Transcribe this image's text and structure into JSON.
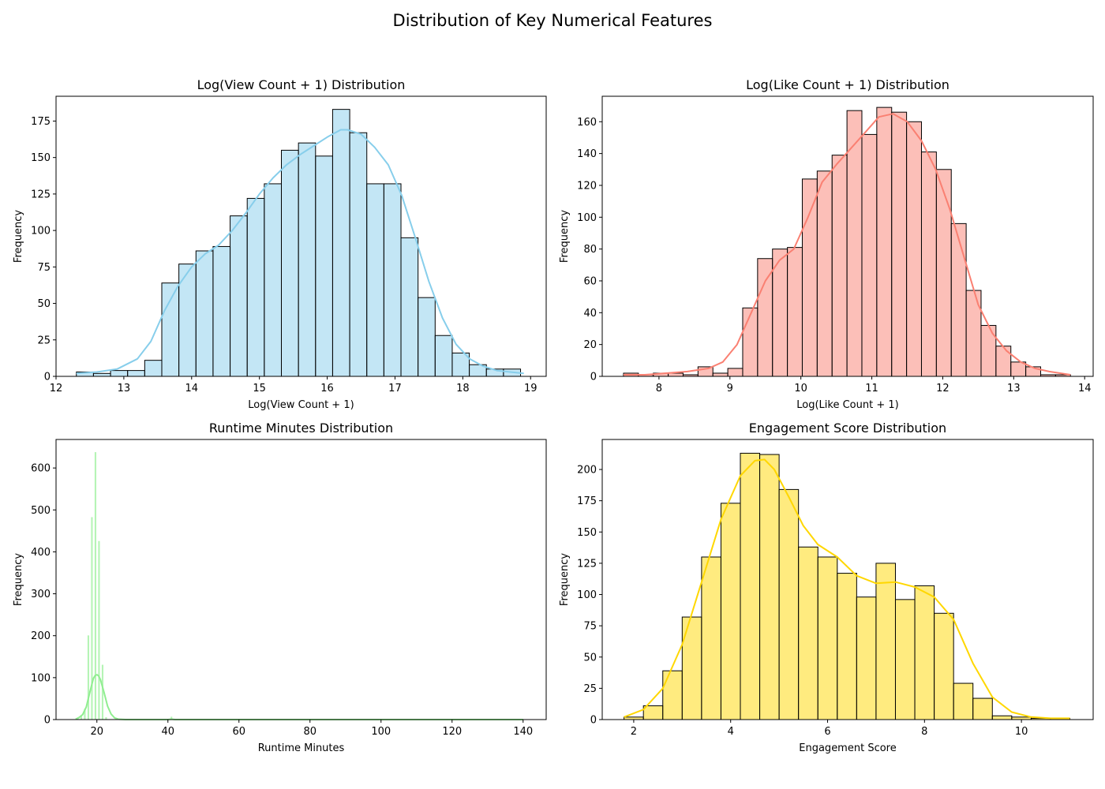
{
  "figure": {
    "title": "Distribution of Key Numerical Features"
  },
  "chart_data": [
    {
      "type": "bar",
      "title": "Log(View Count + 1) Distribution",
      "xlabel": "Log(View Count + 1)",
      "ylabel": "Frequency",
      "xlim": [
        12.0,
        19.23
      ],
      "ylim": [
        0,
        192
      ],
      "xticks": [
        12,
        13,
        14,
        15,
        16,
        17,
        18,
        19
      ],
      "yticks": [
        0,
        25,
        50,
        75,
        100,
        125,
        150,
        175
      ],
      "bins": {
        "edges": [
          12.3,
          12.552,
          12.804,
          13.056,
          13.308,
          13.56,
          13.812,
          14.064,
          14.316,
          14.568,
          14.82,
          15.072,
          15.324,
          15.576,
          15.828,
          16.08,
          16.332,
          16.584,
          16.836,
          17.088,
          17.34,
          17.592,
          17.844,
          18.096,
          18.348,
          18.6,
          18.852
        ],
        "counts": [
          3,
          2,
          4,
          4,
          11,
          64,
          77,
          86,
          89,
          110,
          122,
          132,
          155,
          160,
          151,
          183,
          167,
          132,
          132,
          95,
          54,
          28,
          16,
          8,
          5,
          5
        ]
      },
      "kde": {
        "x": [
          12.3,
          12.6,
          12.9,
          13.2,
          13.4,
          13.6,
          13.8,
          14.0,
          14.2,
          14.4,
          14.6,
          14.8,
          15.0,
          15.2,
          15.4,
          15.6,
          15.8,
          16.0,
          16.2,
          16.3,
          16.5,
          16.7,
          16.9,
          17.1,
          17.3,
          17.5,
          17.7,
          17.9,
          18.1,
          18.3,
          18.5,
          18.7,
          18.9
        ],
        "y": [
          2,
          3,
          5,
          12,
          24,
          45,
          62,
          75,
          84,
          90,
          100,
          112,
          125,
          136,
          145,
          152,
          158,
          164,
          169,
          169,
          166,
          157,
          145,
          124,
          95,
          65,
          40,
          22,
          12,
          7,
          4,
          3,
          2
        ]
      },
      "fill": "#87ceeb",
      "line_color": "#87ceeb"
    },
    {
      "type": "bar",
      "title": "Log(Like Count + 1) Distribution",
      "xlabel": "Log(Like Count + 1)",
      "ylabel": "Frequency",
      "xlim": [
        7.2,
        14.12
      ],
      "ylim": [
        0,
        176
      ],
      "xticks": [
        8,
        9,
        10,
        11,
        12,
        13,
        14
      ],
      "yticks": [
        0,
        20,
        40,
        60,
        80,
        100,
        120,
        140,
        160
      ],
      "bins": {
        "edges": [
          7.5,
          7.71,
          7.92,
          8.13,
          8.34,
          8.55,
          8.76,
          8.97,
          9.18,
          9.39,
          9.6,
          9.81,
          10.02,
          10.23,
          10.44,
          10.65,
          10.86,
          11.07,
          11.28,
          11.49,
          11.7,
          11.91,
          12.12,
          12.33,
          12.54,
          12.75,
          12.96,
          13.17,
          13.38,
          13.59,
          13.8
        ],
        "counts": [
          2,
          1,
          2,
          2,
          1,
          6,
          2,
          5,
          43,
          74,
          80,
          81,
          124,
          129,
          139,
          167,
          152,
          169,
          166,
          160,
          141,
          130,
          96,
          54,
          32,
          19,
          9,
          6,
          1,
          1
        ]
      },
      "kde": {
        "x": [
          7.5,
          7.8,
          8.1,
          8.4,
          8.7,
          8.9,
          9.1,
          9.3,
          9.5,
          9.7,
          9.9,
          10.1,
          10.3,
          10.5,
          10.7,
          10.9,
          11.1,
          11.3,
          11.5,
          11.7,
          11.9,
          12.1,
          12.3,
          12.5,
          12.7,
          12.9,
          13.1,
          13.3,
          13.5,
          13.8
        ],
        "y": [
          1,
          1,
          2,
          3,
          5,
          9,
          20,
          40,
          60,
          73,
          80,
          100,
          122,
          133,
          143,
          153,
          163,
          165,
          160,
          148,
          130,
          105,
          75,
          45,
          27,
          16,
          9,
          5,
          3,
          1
        ]
      },
      "fill": "#fa8072",
      "line_color": "#fa8072"
    },
    {
      "type": "bar",
      "title": "Runtime Minutes Distribution",
      "xlabel": "Runtime Minutes",
      "ylabel": "Frequency",
      "xlim": [
        8.5,
        146.5
      ],
      "ylim": [
        0,
        668
      ],
      "xticks": [
        20,
        40,
        60,
        80,
        100,
        120,
        140
      ],
      "yticks": [
        0,
        100,
        200,
        300,
        400,
        500,
        600
      ],
      "bins": {
        "edges": [
          14.45,
          14.75,
          15.45,
          15.75,
          16.45,
          16.75,
          17.45,
          17.75,
          18.45,
          18.75,
          19.45,
          19.75,
          20.45,
          20.75,
          21.45,
          21.75,
          22.45,
          22.75,
          40.85,
          41.15
        ],
        "counts": [
          3,
          0,
          8,
          0,
          25,
          0,
          200,
          0,
          482,
          0,
          637,
          0,
          425,
          0,
          130,
          0,
          5,
          0,
          6
        ]
      },
      "kde": {
        "x": [
          14.0,
          15.0,
          16.0,
          17.0,
          18.0,
          19.0,
          19.5,
          20.0,
          20.5,
          21.0,
          22.0,
          23.0,
          24.0,
          25.0,
          26.0,
          28.0,
          30.0,
          40.0,
          41.0,
          42.0,
          60.0,
          100.0,
          140.0
        ],
        "y": [
          1,
          5,
          12,
          30,
          65,
          98,
          105,
          107,
          104,
          95,
          65,
          32,
          13,
          4,
          1,
          0,
          0,
          0,
          1,
          0,
          0,
          0,
          0
        ]
      },
      "fill": "#90ee90",
      "line_color": "#90ee90"
    },
    {
      "type": "bar",
      "title": "Engagement Score Distribution",
      "xlabel": "Engagement Score",
      "ylabel": "Frequency",
      "xlim": [
        1.35,
        11.48
      ],
      "ylim": [
        0,
        224
      ],
      "xticks": [
        2,
        4,
        6,
        8,
        10
      ],
      "yticks": [
        0,
        25,
        50,
        75,
        100,
        125,
        150,
        175,
        200
      ],
      "bins": {
        "edges": [
          1.8,
          2.2,
          2.6,
          3.0,
          3.4,
          3.8,
          4.2,
          4.6,
          5.0,
          5.4,
          5.8,
          6.2,
          6.6,
          7.0,
          7.4,
          7.8,
          8.2,
          8.6,
          9.0,
          9.4,
          9.8,
          10.2,
          10.6,
          11.0
        ],
        "counts": [
          2,
          11,
          39,
          82,
          130,
          173,
          213,
          212,
          184,
          138,
          130,
          117,
          98,
          125,
          96,
          107,
          85,
          29,
          17,
          3,
          2,
          1,
          1
        ]
      },
      "kde": {
        "x": [
          1.8,
          2.2,
          2.6,
          3.0,
          3.4,
          3.8,
          4.2,
          4.5,
          4.7,
          4.9,
          5.2,
          5.5,
          5.8,
          6.2,
          6.6,
          7.0,
          7.4,
          7.8,
          8.2,
          8.6,
          9.0,
          9.4,
          9.8,
          10.2,
          10.6,
          11.0
        ],
        "y": [
          2,
          8,
          25,
          60,
          110,
          160,
          195,
          207,
          208,
          200,
          178,
          155,
          140,
          130,
          115,
          109,
          110,
          106,
          98,
          80,
          45,
          18,
          6,
          2,
          1,
          1
        ]
      },
      "fill": "#ffd700",
      "line_color": "#ffd700"
    }
  ]
}
